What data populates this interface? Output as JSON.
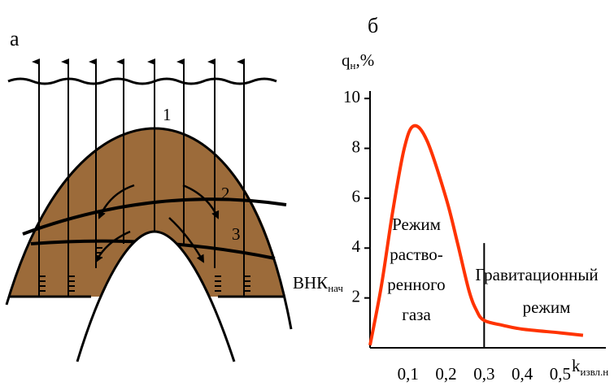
{
  "diagram": {
    "panel_label": "а",
    "layers": [
      "1",
      "2",
      "3"
    ],
    "contact": {
      "label": "ВНК",
      "subscript": "нач"
    }
  },
  "chart_data": {
    "type": "line",
    "panel_label": "б",
    "ylabel": {
      "main": "q",
      "sub": "н",
      "suffix": ",%"
    },
    "xlabel": {
      "main": "k",
      "sub": "извл.н"
    },
    "x": [
      0,
      0.03,
      0.06,
      0.09,
      0.115,
      0.15,
      0.2,
      0.23,
      0.26,
      0.28,
      0.3,
      0.35,
      0.4,
      0.5,
      0.56
    ],
    "values": [
      0.1,
      2.5,
      5.5,
      8,
      8.9,
      8.3,
      6,
      4.2,
      2.3,
      1.5,
      1.1,
      0.9,
      0.75,
      0.6,
      0.5
    ],
    "color": "#ff3300",
    "xlim": [
      0,
      0.62
    ],
    "ylim": [
      0,
      10.3
    ],
    "xticks": [
      {
        "value": 0.1,
        "label": "0,1"
      },
      {
        "value": 0.2,
        "label": "0,2"
      },
      {
        "value": 0.3,
        "label": "0,3"
      },
      {
        "value": 0.4,
        "label": "0,4"
      },
      {
        "value": 0.5,
        "label": "0,5"
      }
    ],
    "yticks": [
      2,
      4,
      6,
      8,
      10
    ],
    "grid": false,
    "annotations": [
      [
        "Режим",
        "раство-",
        "ренного",
        "газа"
      ],
      [
        "Гравитационный",
        "режим"
      ]
    ]
  }
}
